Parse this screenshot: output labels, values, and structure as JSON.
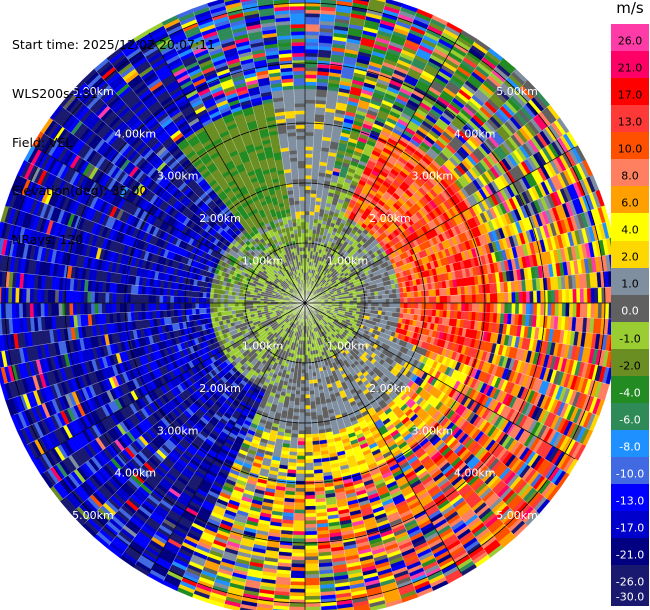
{
  "header": {
    "start_time": "Start time: 2025/12/02 20:07:11",
    "instrument": "WLS200s-181",
    "field": "Field: VEL",
    "elevation": "Elevation(deg): 35.00",
    "nrays": "NRays: 120"
  },
  "colorbar": {
    "unit": "m/s",
    "segments": [
      {
        "label": "26.0",
        "color": "#ff3ba8"
      },
      {
        "label": "21.0",
        "color": "#ff0066"
      },
      {
        "label": "17.0",
        "color": "#ff0000"
      },
      {
        "label": "13.0",
        "color": "#ff3838"
      },
      {
        "label": "10.0",
        "color": "#ff5000"
      },
      {
        "label": "8.0",
        "color": "#ff8060"
      },
      {
        "label": "6.0",
        "color": "#ffa000"
      },
      {
        "label": "4.0",
        "color": "#ffff00"
      },
      {
        "label": "2.0",
        "color": "#ffd700"
      },
      {
        "label": "1.0",
        "color": "#7f8fa0"
      },
      {
        "label": "0.0",
        "color": "#606060"
      },
      {
        "label": "-1.0",
        "color": "#9acd32"
      },
      {
        "label": "-2.0",
        "color": "#6b8e23"
      },
      {
        "label": "-4.0",
        "color": "#228b22"
      },
      {
        "label": "-6.0",
        "color": "#2e8b57"
      },
      {
        "label": "-8.0",
        "color": "#1e90ff"
      },
      {
        "label": "-10.0",
        "color": "#4169e1"
      },
      {
        "label": "-13.0",
        "color": "#0000ff"
      },
      {
        "label": "-17.0",
        "color": "#0000cd"
      },
      {
        "label": "-21.0",
        "color": "#000080"
      },
      {
        "label": "-26.0",
        "color": "#191970"
      },
      {
        "label": "-30.0",
        "color": ""
      }
    ]
  },
  "chart_data": {
    "type": "heatmap",
    "projection": "polar PPI",
    "field": "VEL",
    "units": "m/s",
    "nrays": 120,
    "elevation_deg": 35.0,
    "range_rings_km": [
      1,
      2,
      3,
      4,
      5
    ],
    "ring_labels": [
      "1.00km",
      "2.00km",
      "3.00km",
      "4.00km",
      "5.00km"
    ],
    "max_range_km": 5.2,
    "value_range": [
      -30,
      30
    ],
    "pattern": "Near-zero velocities (grey/olive/yellow) within ~2 km; strong positive (pink/red) band to the east and north-east; strong negative (blue/navy) sector to the west and north-west; noisy alternating values beyond ~3 km."
  }
}
